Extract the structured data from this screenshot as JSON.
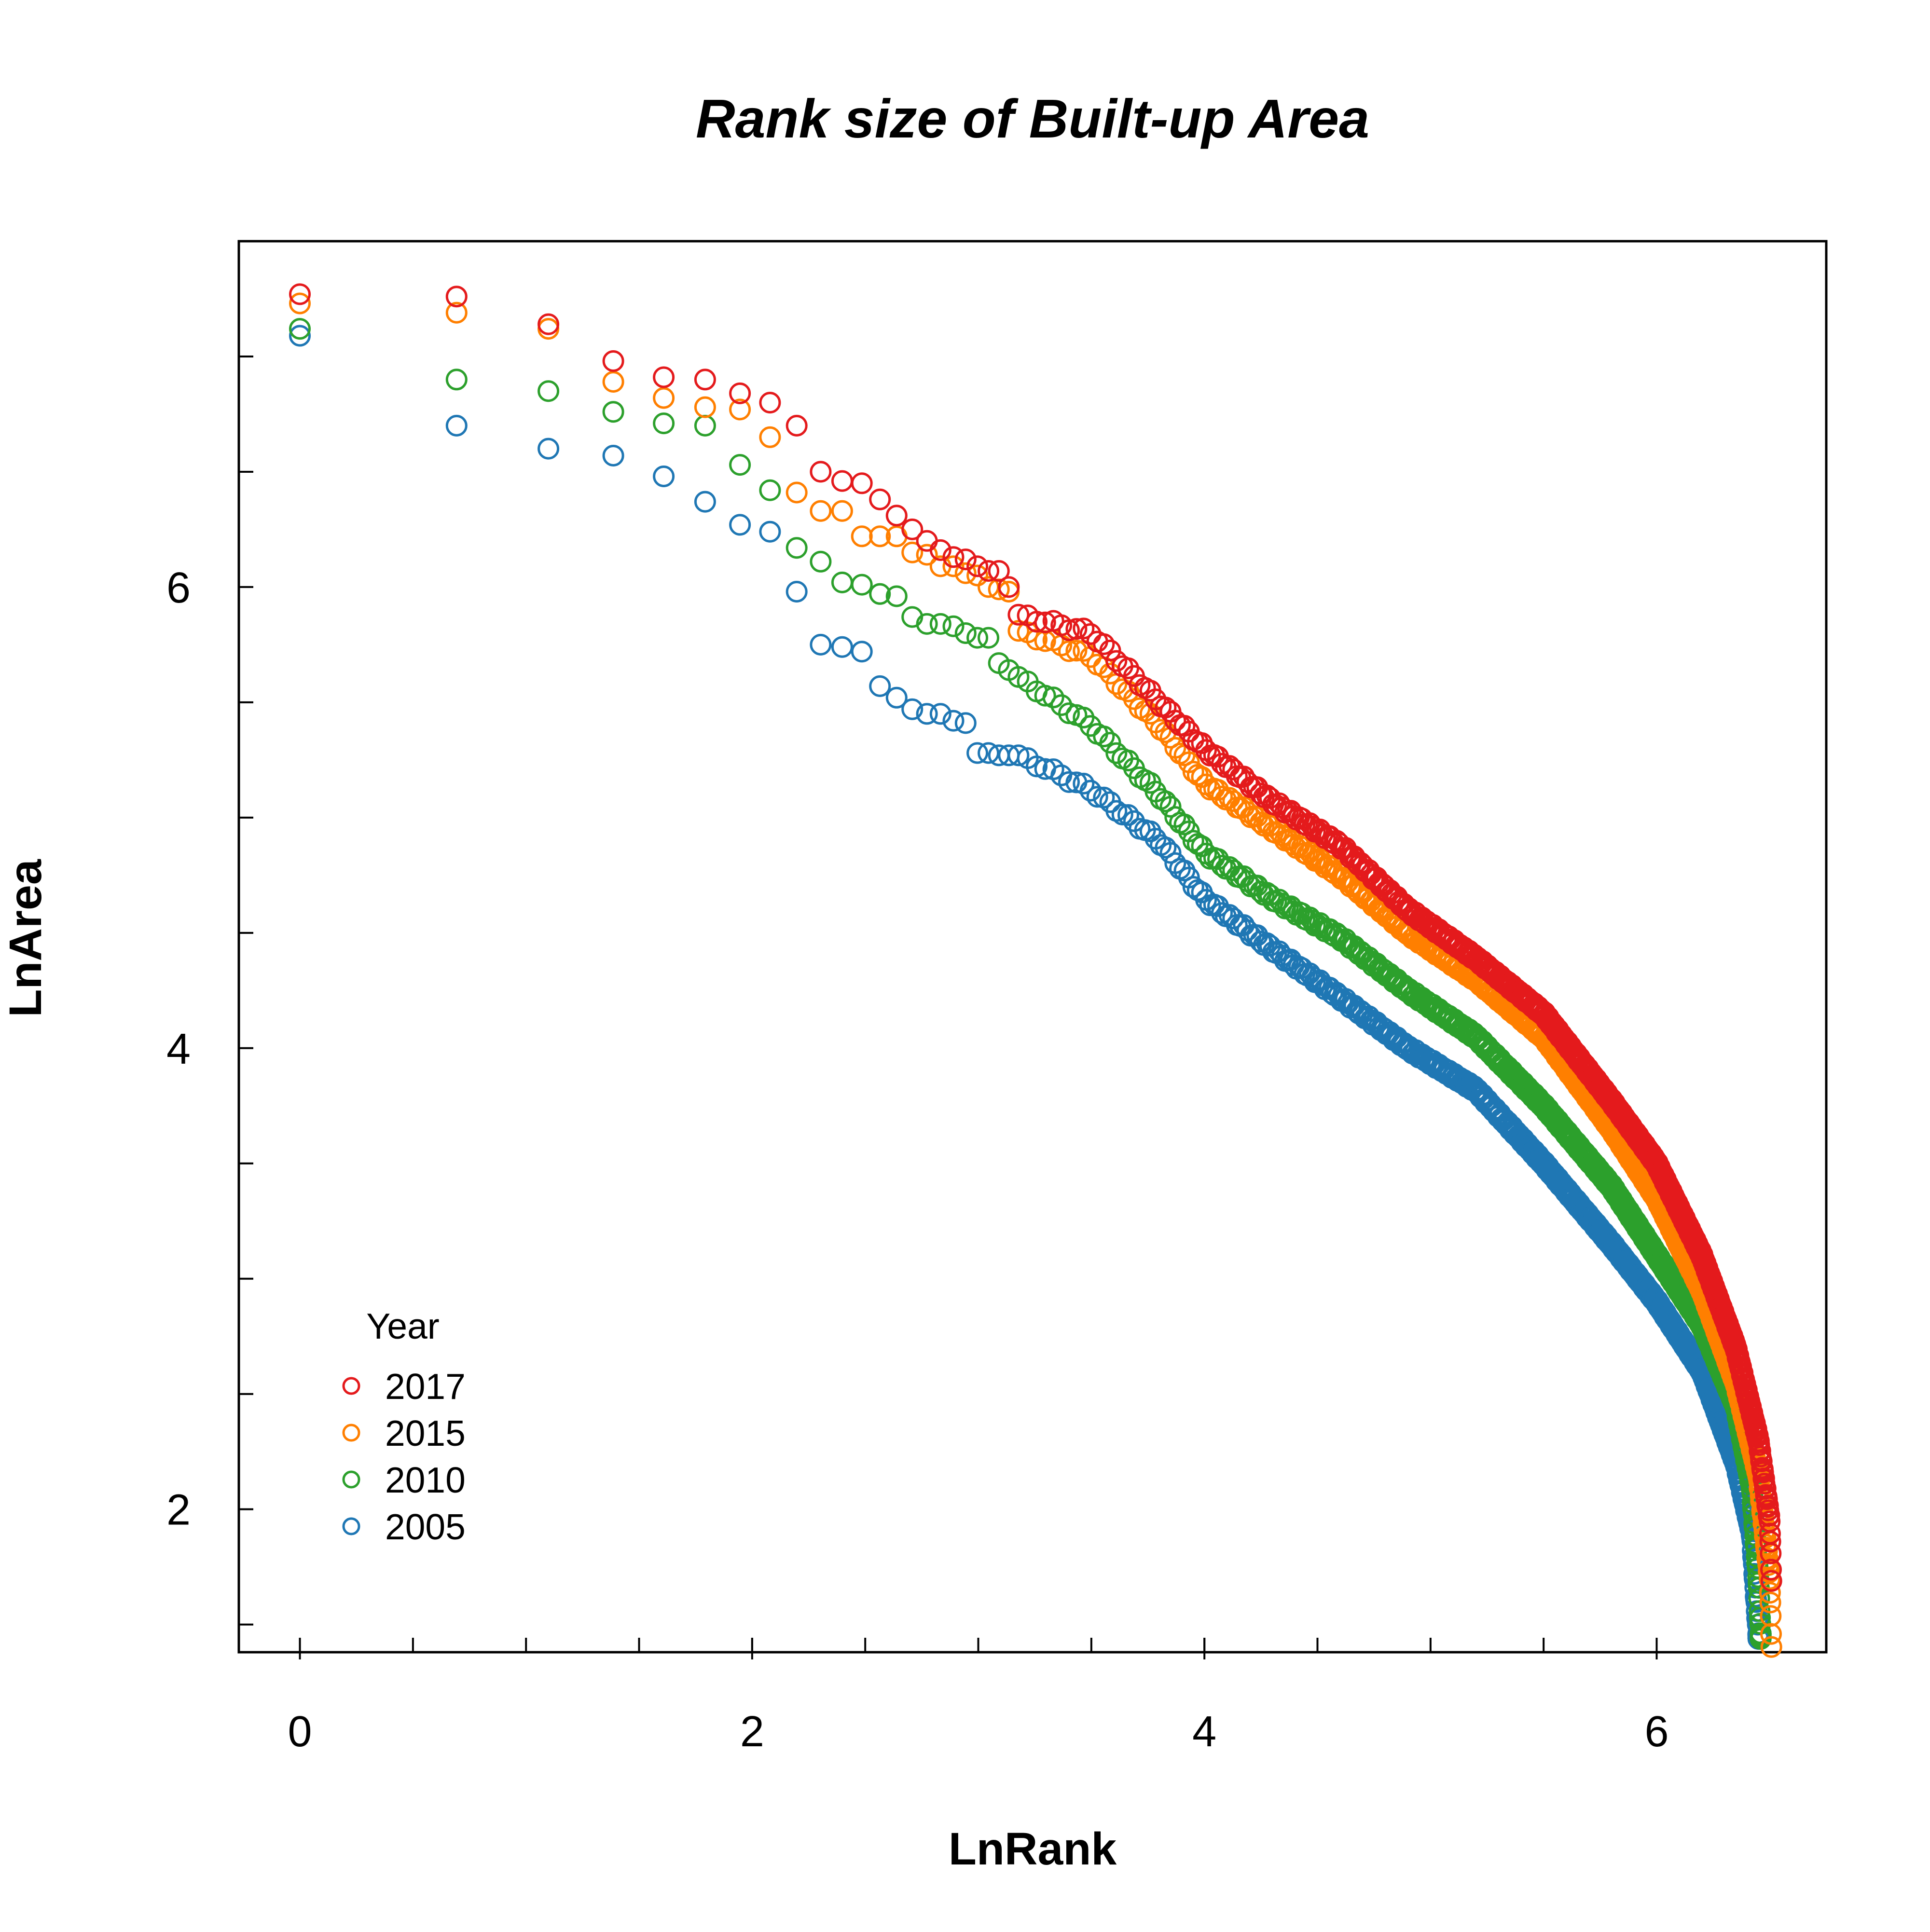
{
  "chart_data": {
    "type": "scatter",
    "title": "Rank size of Built-up Area",
    "xlabel": "LnRank",
    "ylabel": "LnArea",
    "xlim": [
      -0.27,
      6.75
    ],
    "ylim": [
      1.38,
      7.5
    ],
    "x_ticks_major": [
      0,
      2,
      4,
      6
    ],
    "x_ticks_minor": [
      0,
      0.5,
      1,
      1.5,
      2,
      2.5,
      3,
      3.5,
      4,
      4.5,
      5,
      5.5,
      6
    ],
    "y_ticks_major": [
      2,
      4,
      6
    ],
    "y_ticks_minor": [
      1.5,
      2,
      2.5,
      3,
      3.5,
      4,
      4.5,
      5,
      5.5,
      6,
      6.5,
      7
    ],
    "grid": false,
    "legend": {
      "title": "Year",
      "placement": "bottom-left"
    },
    "n_points_per_series": 670,
    "series": [
      {
        "name": "2017",
        "color": "#e41a1c",
        "points": [
          [
            0,
            7.27
          ],
          [
            0.693,
            7.26
          ],
          [
            1.099,
            7.14
          ],
          [
            1.386,
            6.98
          ],
          [
            1.609,
            6.91
          ],
          [
            1.792,
            6.9
          ],
          [
            1.946,
            6.84
          ],
          [
            2.079,
            6.8
          ],
          [
            2.197,
            6.7
          ],
          [
            2.303,
            6.5
          ],
          [
            2.398,
            6.46
          ],
          [
            2.485,
            6.45
          ],
          [
            2.565,
            6.38
          ],
          [
            2.639,
            6.31
          ],
          [
            2.708,
            6.25
          ],
          [
            2.773,
            6.2
          ],
          [
            2.833,
            6.16
          ],
          [
            2.89,
            6.13
          ],
          [
            2.944,
            6.12
          ],
          [
            2.996,
            6.09
          ],
          [
            3.045,
            6.07
          ],
          [
            3.091,
            6.07
          ],
          [
            3.135,
            6.0
          ],
          [
            3.178,
            5.88
          ],
          [
            3.5,
            5.8
          ],
          [
            3.8,
            5.5
          ],
          [
            4.0,
            5.3
          ],
          [
            4.3,
            5.07
          ],
          [
            4.6,
            4.88
          ],
          [
            4.9,
            4.6
          ],
          [
            5.2,
            4.39
          ],
          [
            5.5,
            4.15
          ],
          [
            5.8,
            3.77
          ],
          [
            6.0,
            3.5
          ],
          [
            6.2,
            3.1
          ],
          [
            6.35,
            2.7
          ],
          [
            6.45,
            2.3
          ],
          [
            6.5,
            1.95
          ],
          [
            6.51,
            1.6
          ]
        ]
      },
      {
        "name": "2015",
        "color": "#ff7f00",
        "points": [
          [
            0,
            7.23
          ],
          [
            0.693,
            7.19
          ],
          [
            1.099,
            7.12
          ],
          [
            1.386,
            6.89
          ],
          [
            1.609,
            6.82
          ],
          [
            1.792,
            6.78
          ],
          [
            1.946,
            6.77
          ],
          [
            2.079,
            6.65
          ],
          [
            2.197,
            6.41
          ],
          [
            2.303,
            6.33
          ],
          [
            2.398,
            6.33
          ],
          [
            2.485,
            6.22
          ],
          [
            2.565,
            6.22
          ],
          [
            2.639,
            6.22
          ],
          [
            2.708,
            6.15
          ],
          [
            2.773,
            6.14
          ],
          [
            2.833,
            6.09
          ],
          [
            2.89,
            6.09
          ],
          [
            2.944,
            6.06
          ],
          [
            2.996,
            6.05
          ],
          [
            3.045,
            6.0
          ],
          [
            3.091,
            5.99
          ],
          [
            3.135,
            5.98
          ],
          [
            3.178,
            5.81
          ],
          [
            3.5,
            5.7
          ],
          [
            3.8,
            5.4
          ],
          [
            4.0,
            5.15
          ],
          [
            4.3,
            4.95
          ],
          [
            4.6,
            4.75
          ],
          [
            4.9,
            4.5
          ],
          [
            5.2,
            4.3
          ],
          [
            5.5,
            4.05
          ],
          [
            5.8,
            3.65
          ],
          [
            6.0,
            3.35
          ],
          [
            6.2,
            2.95
          ],
          [
            6.35,
            2.55
          ],
          [
            6.45,
            2.15
          ],
          [
            6.5,
            1.7
          ],
          [
            6.51,
            1.3
          ]
        ]
      },
      {
        "name": "2010",
        "color": "#2ca02c",
        "points": [
          [
            0,
            7.12
          ],
          [
            0.693,
            6.9
          ],
          [
            1.099,
            6.85
          ],
          [
            1.386,
            6.76
          ],
          [
            1.609,
            6.71
          ],
          [
            1.792,
            6.7
          ],
          [
            1.946,
            6.53
          ],
          [
            2.079,
            6.42
          ],
          [
            2.197,
            6.17
          ],
          [
            2.303,
            6.11
          ],
          [
            2.398,
            6.02
          ],
          [
            2.485,
            6.01
          ],
          [
            2.565,
            5.97
          ],
          [
            2.639,
            5.96
          ],
          [
            2.708,
            5.87
          ],
          [
            2.773,
            5.84
          ],
          [
            2.833,
            5.84
          ],
          [
            2.89,
            5.83
          ],
          [
            2.944,
            5.8
          ],
          [
            2.996,
            5.78
          ],
          [
            3.045,
            5.78
          ],
          [
            3.091,
            5.67
          ],
          [
            3.135,
            5.64
          ],
          [
            3.178,
            5.61
          ],
          [
            3.5,
            5.4
          ],
          [
            3.8,
            5.1
          ],
          [
            4.0,
            4.85
          ],
          [
            4.3,
            4.65
          ],
          [
            4.6,
            4.48
          ],
          [
            4.9,
            4.25
          ],
          [
            5.2,
            4.05
          ],
          [
            5.5,
            3.75
          ],
          [
            5.8,
            3.4
          ],
          [
            6.0,
            3.1
          ],
          [
            6.2,
            2.8
          ],
          [
            6.35,
            2.45
          ],
          [
            6.42,
            2.1
          ],
          [
            6.45,
            1.7
          ],
          [
            6.46,
            1.45
          ]
        ]
      },
      {
        "name": "2005",
        "color": "#1f77b4",
        "points": [
          [
            0,
            7.09
          ],
          [
            0.693,
            6.7
          ],
          [
            1.099,
            6.6
          ],
          [
            1.386,
            6.57
          ],
          [
            1.609,
            6.48
          ],
          [
            1.792,
            6.37
          ],
          [
            1.946,
            6.27
          ],
          [
            2.079,
            6.24
          ],
          [
            2.197,
            5.98
          ],
          [
            2.303,
            5.75
          ],
          [
            2.398,
            5.74
          ],
          [
            2.485,
            5.72
          ],
          [
            2.565,
            5.57
          ],
          [
            2.639,
            5.52
          ],
          [
            2.708,
            5.47
          ],
          [
            2.773,
            5.45
          ],
          [
            2.833,
            5.45
          ],
          [
            2.89,
            5.42
          ],
          [
            2.944,
            5.41
          ],
          [
            2.996,
            5.28
          ],
          [
            3.045,
            5.28
          ],
          [
            3.091,
            5.27
          ],
          [
            3.135,
            5.27
          ],
          [
            3.178,
            5.27
          ],
          [
            3.5,
            5.12
          ],
          [
            3.8,
            4.9
          ],
          [
            4.0,
            4.65
          ],
          [
            4.3,
            4.43
          ],
          [
            4.6,
            4.22
          ],
          [
            4.9,
            4.0
          ],
          [
            5.2,
            3.82
          ],
          [
            5.5,
            3.5
          ],
          [
            5.8,
            3.15
          ],
          [
            6.0,
            2.9
          ],
          [
            6.2,
            2.6
          ],
          [
            6.35,
            2.2
          ],
          [
            6.42,
            1.9
          ],
          [
            6.44,
            1.6
          ],
          [
            6.45,
            1.45
          ]
        ]
      }
    ]
  }
}
